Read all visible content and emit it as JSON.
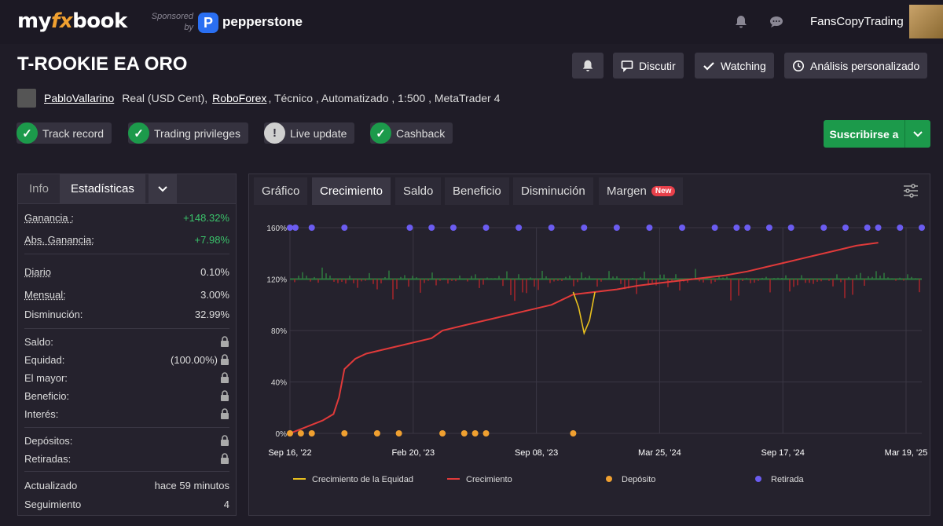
{
  "header": {
    "logo_left": "my",
    "logo_fx": "fx",
    "logo_right": "book",
    "sponsored": "Sponsored",
    "sponsored_by": "by",
    "sponsor_mark": "P",
    "sponsor": "pepperstone",
    "username": "FansCopyTrading"
  },
  "account": {
    "title": "T-ROOKIE EA ORO",
    "owner": "PabloVallarino",
    "type": "Real (USD Cent),",
    "broker": "RoboForex",
    "rest": ", Técnico , Automatizado , 1:500 , MetaTrader 4"
  },
  "actions": {
    "discuss": "Discutir",
    "watching": "Watching",
    "custom": "Análisis personalizado",
    "subscribe": "Suscribirse a"
  },
  "badges": [
    {
      "label": "Track record",
      "color": "#1c9a4b",
      "icon": "✓"
    },
    {
      "label": "Trading privileges",
      "color": "#1c9a4b",
      "icon": "✓"
    },
    {
      "label": "Live update",
      "color": "#cfcfcf",
      "icon": "!"
    },
    {
      "label": "Cashback",
      "color": "#1c9a4b",
      "icon": "✓"
    }
  ],
  "stats_tabs": {
    "info": "Info",
    "stats": "Estadísticas"
  },
  "stats": {
    "gain_label": "Ganancia :",
    "gain_value": "+148.32%",
    "abs_gain_label": "Abs. Ganancia:",
    "abs_gain_value": "+7.98%",
    "daily_label": "Diario",
    "daily_value": "0.10%",
    "monthly_label": "Mensual:",
    "monthly_value": "3.00%",
    "drawdown_label": "Disminución:",
    "drawdown_value": "32.99%",
    "balance_label": "Saldo:",
    "equity_label": "Equidad:",
    "equity_value": "(100.00%)",
    "highest_label": "El mayor:",
    "profit_label": "Beneficio:",
    "interest_label": "Interés:",
    "deposits_label": "Depósitos:",
    "withdrawals_label": "Retiradas:",
    "updated_label": "Actualizado",
    "updated_value": "hace 59 minutos",
    "tracking_label": "Seguimiento",
    "tracking_value": "4"
  },
  "chart_tabs": [
    {
      "label": "Gráfico"
    },
    {
      "label": "Crecimiento"
    },
    {
      "label": "Saldo"
    },
    {
      "label": "Beneficio"
    },
    {
      "label": "Disminución"
    },
    {
      "label": "Margen",
      "badge": "New"
    }
  ],
  "chart_data": {
    "type": "line",
    "x_ticks": [
      "Sep 16, '22",
      "Feb 20, '23",
      "Sep 08, '23",
      "Mar 25, '24",
      "Sep 17, '24",
      "Mar 19, '25"
    ],
    "y_ticks": [
      "0%",
      "40%",
      "80%",
      "120%",
      "160%"
    ],
    "ylim": [
      0,
      160
    ],
    "grid": true,
    "legend_position": "bottom",
    "series": [
      {
        "name": "Crecimiento de la Equidad",
        "color": "#e8c01e"
      },
      {
        "name": "Crecimiento",
        "color": "#e03a3a"
      },
      {
        "name": "Depósito",
        "color": "#f0a030"
      },
      {
        "name": "Retirada",
        "color": "#6b5cf0"
      }
    ],
    "growth": [
      [
        0,
        0
      ],
      [
        3,
        5
      ],
      [
        6,
        10
      ],
      [
        8,
        15
      ],
      [
        9,
        28
      ],
      [
        10,
        50
      ],
      [
        12,
        58
      ],
      [
        14,
        62
      ],
      [
        18,
        66
      ],
      [
        22,
        70
      ],
      [
        26,
        74
      ],
      [
        28,
        80
      ],
      [
        32,
        84
      ],
      [
        36,
        88
      ],
      [
        40,
        92
      ],
      [
        44,
        96
      ],
      [
        48,
        100
      ],
      [
        50,
        104
      ],
      [
        52,
        108
      ],
      [
        56,
        110
      ],
      [
        60,
        112
      ],
      [
        64,
        115
      ],
      [
        68,
        117
      ],
      [
        72,
        119
      ],
      [
        76,
        121
      ],
      [
        80,
        123
      ],
      [
        84,
        126
      ],
      [
        88,
        130
      ],
      [
        92,
        134
      ],
      [
        96,
        138
      ],
      [
        100,
        142
      ],
      [
        104,
        146
      ],
      [
        108,
        148.32
      ]
    ],
    "equity_dips": [
      [
        52,
        110
      ],
      [
        53,
        98
      ],
      [
        54,
        78
      ],
      [
        55,
        88
      ],
      [
        56,
        110
      ]
    ],
    "deposit_x": [
      0,
      2,
      4,
      10,
      16,
      20,
      28,
      32,
      34,
      36,
      52
    ],
    "withdrawal_x": [
      0,
      1,
      4,
      10,
      22,
      26,
      30,
      36,
      42,
      48,
      54,
      60,
      66,
      72,
      78,
      82,
      84,
      88,
      92,
      98,
      102,
      106,
      108,
      112,
      116
    ],
    "x_max": 116
  }
}
